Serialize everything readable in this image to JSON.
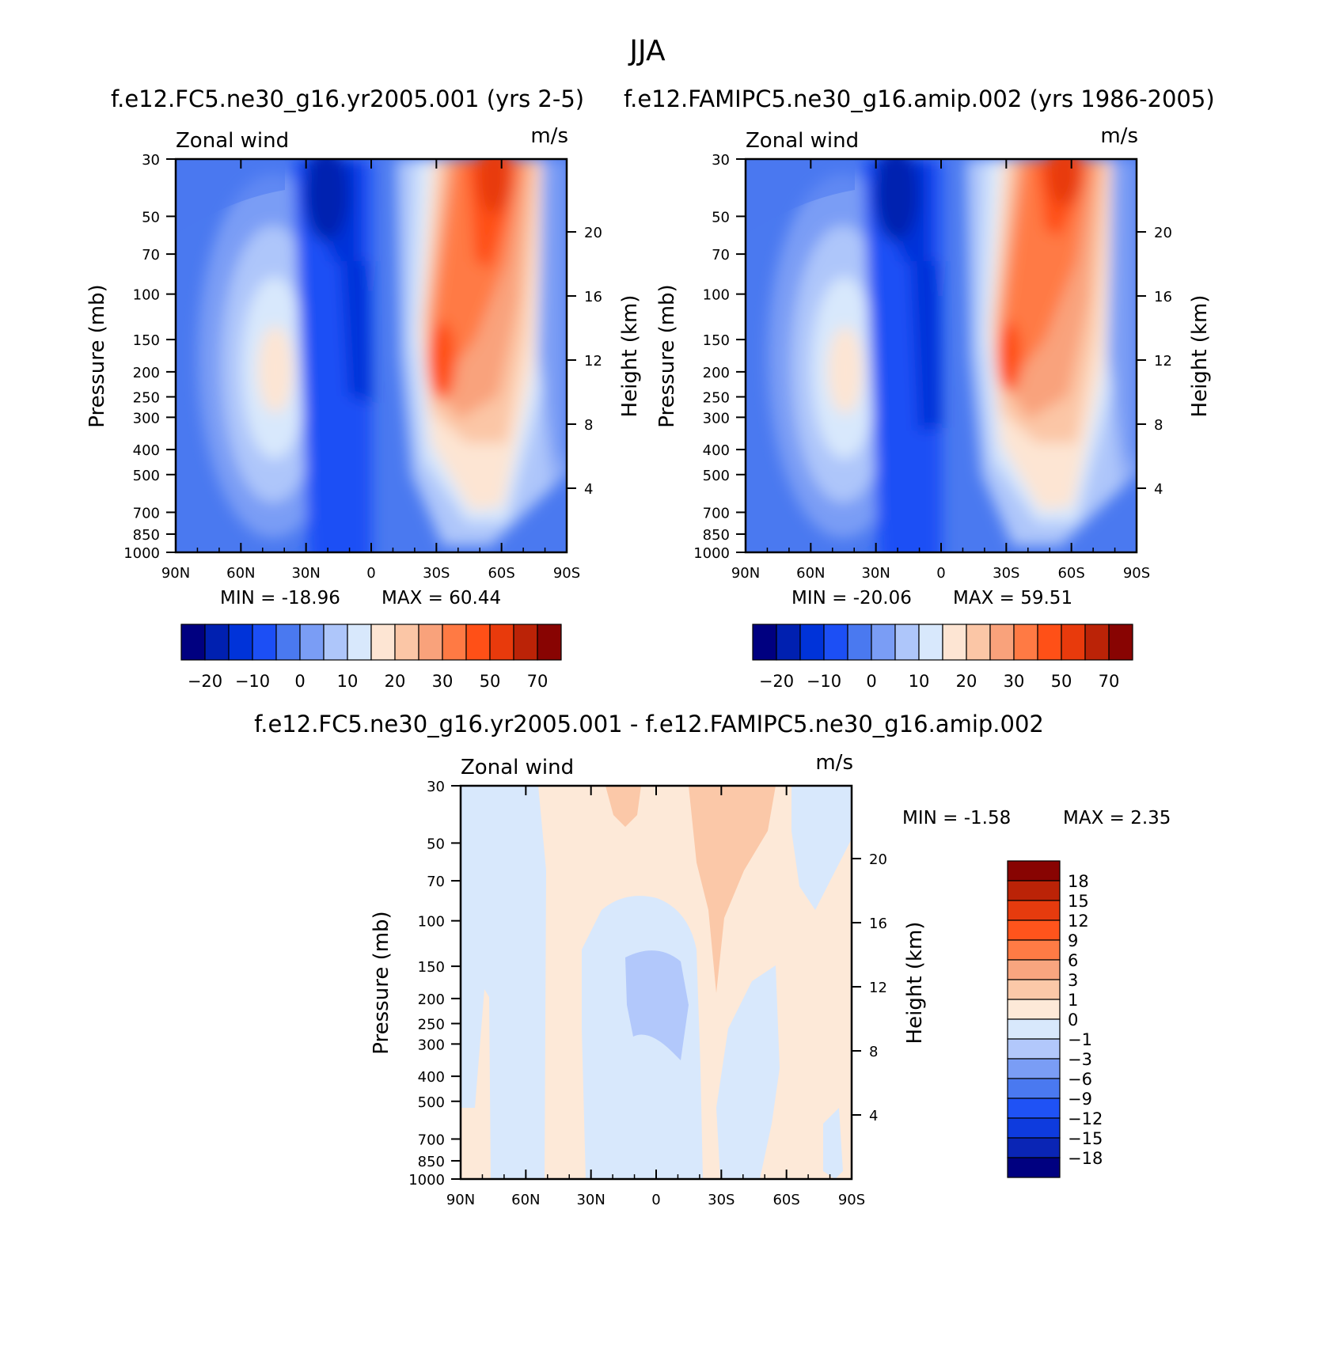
{
  "figure_title": "JJA",
  "colors": {
    "case": [
      "#000080",
      "#0020b0",
      "#0033d9",
      "#1c4ff5",
      "#4a79f0",
      "#7a9df5",
      "#aec6fa",
      "#d8e8fc",
      "#fde5d3",
      "#fbc6a6",
      "#f9a27b",
      "#ff7a44",
      "#ff5017",
      "#e83a0c",
      "#bb2307",
      "#880402"
    ],
    "diff": [
      "#000080",
      "#0a25b5",
      "#0e3bde",
      "#1f52f5",
      "#4a79f0",
      "#7a9df5",
      "#b2c8fb",
      "#d8e8fc",
      "#fde9d8",
      "#fbc8a8",
      "#f8a57f",
      "#ff7b45",
      "#ff541c",
      "#e63b0e",
      "#bb2307",
      "#880402"
    ]
  },
  "chart_data": [
    {
      "id": "panel-case1",
      "type": "heatmap",
      "title": "f.e12.FC5.ne30_g16.yr2005.001 (yrs 2-5)",
      "variable_label": "Zonal wind",
      "units": "m/s",
      "xlabel": "",
      "ylabel": "Pressure (mb)",
      "y2label": "Height (km)",
      "x_ticks": [
        "90N",
        "60N",
        "30N",
        "0",
        "30S",
        "60S",
        "90S"
      ],
      "y_ticks": [
        "30",
        "50",
        "70",
        "100",
        "150",
        "200",
        "250",
        "300",
        "400",
        "500",
        "700",
        "850",
        "1000"
      ],
      "y2_ticks": [
        "20",
        "16",
        "12",
        "8",
        "4"
      ],
      "min_label": "MIN = -18.96",
      "max_label": "MAX = 60.44",
      "min": -18.96,
      "max": 60.44,
      "colorbar_labels": [
        "-20",
        "-10",
        "0",
        "10",
        "20",
        "30",
        "50",
        "70"
      ]
    },
    {
      "id": "panel-case2",
      "type": "heatmap",
      "title": "f.e12.FAMIPC5.ne30_g16.amip.002 (yrs 1986-2005)",
      "variable_label": "Zonal wind",
      "units": "m/s",
      "xlabel": "",
      "ylabel": "Pressure (mb)",
      "y2label": "Height (km)",
      "x_ticks": [
        "90N",
        "60N",
        "30N",
        "0",
        "30S",
        "60S",
        "90S"
      ],
      "y_ticks": [
        "30",
        "50",
        "70",
        "100",
        "150",
        "200",
        "250",
        "300",
        "400",
        "500",
        "700",
        "850",
        "1000"
      ],
      "y2_ticks": [
        "20",
        "16",
        "12",
        "8",
        "4"
      ],
      "min_label": "MIN = -20.06",
      "max_label": "MAX = 59.51",
      "min": -20.06,
      "max": 59.51,
      "colorbar_labels": [
        "-20",
        "-10",
        "0",
        "10",
        "20",
        "30",
        "50",
        "70"
      ]
    },
    {
      "id": "panel-diff",
      "type": "heatmap",
      "title": "f.e12.FC5.ne30_g16.yr2005.001 - f.e12.FAMIPC5.ne30_g16.amip.002",
      "variable_label": "Zonal wind",
      "units": "m/s",
      "xlabel": "",
      "ylabel": "Pressure (mb)",
      "y2label": "Height (km)",
      "x_ticks": [
        "90N",
        "60N",
        "30N",
        "0",
        "30S",
        "60S",
        "90S"
      ],
      "y_ticks": [
        "30",
        "50",
        "70",
        "100",
        "150",
        "200",
        "250",
        "300",
        "400",
        "500",
        "700",
        "850",
        "1000"
      ],
      "y2_ticks": [
        "20",
        "16",
        "12",
        "8",
        "4"
      ],
      "min_label": "MIN = -1.58",
      "max_label": "MAX = 2.35",
      "min": -1.58,
      "max": 2.35,
      "colorbar_labels": [
        "18",
        "15",
        "12",
        "9",
        "6",
        "3",
        "1",
        "0",
        "-1",
        "-3",
        "-6",
        "-9",
        "-12",
        "-15",
        "-18"
      ]
    }
  ]
}
